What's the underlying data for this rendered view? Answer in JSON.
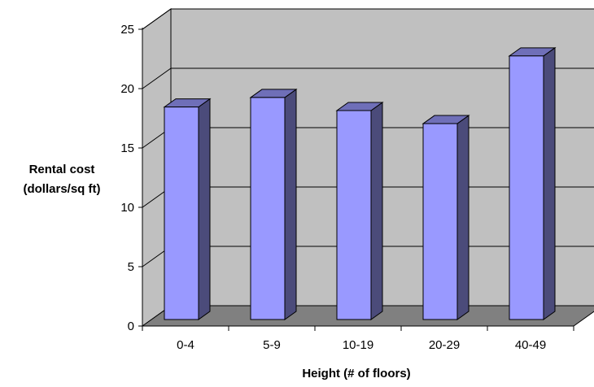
{
  "chart_data": {
    "type": "bar",
    "style": "3d-column",
    "categories": [
      "0-4",
      "5-9",
      "10-19",
      "20-29",
      "40-49"
    ],
    "values": [
      19.0,
      19.8,
      18.7,
      17.6,
      23.3
    ],
    "title": "",
    "xlabel": "Height (# of floors)",
    "ylabel_lines": [
      "Rental cost",
      "(dollars/sq ft)"
    ],
    "ylim": [
      0,
      25
    ],
    "yticks": [
      0,
      5,
      10,
      15,
      20,
      25
    ],
    "grid": true,
    "legend": "none",
    "colors": {
      "bar_front": "#9999ff",
      "bar_side": "#4b4b7a",
      "bar_top": "#6f6fb8",
      "wall": "#c0c0c0",
      "floor": "#808080"
    }
  }
}
